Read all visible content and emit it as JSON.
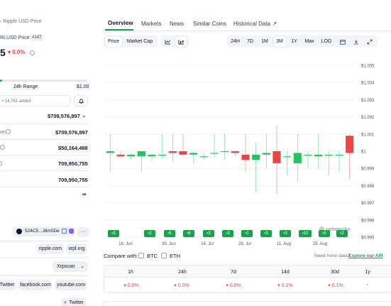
{
  "breadcrumb": {
    "current": "Ripple USD Price"
  },
  "pair": {
    "label": "RLUSD Price",
    "rank": "#147"
  },
  "price": {
    "value": "5",
    "change": "0.0%"
  },
  "range": {
    "label": "24h Range",
    "high": "$1.00"
  },
  "watchlist": {
    "added": "14,761 added"
  },
  "stats": [
    {
      "value": "$709,576,897"
    },
    {
      "label": "on",
      "value": "$709,576,897"
    },
    {
      "value": "$50,164,488"
    },
    {
      "value": "709,950,755"
    },
    {
      "value": "709,950,755"
    },
    {
      "value": "∞"
    }
  ],
  "contract": {
    "address": "524C5...J8m5De",
    "menu": "···"
  },
  "links": {
    "website": "ripple.com",
    "xrpl": "xrpl.org",
    "explorer": "Xrpscan",
    "twitter": "Twitter",
    "facebook": "facebook.com",
    "youtube": "youtube.com",
    "search": "Twitter"
  },
  "tabs": [
    "Overview",
    "Markets",
    "News",
    "Similar Coins",
    "Historical Data"
  ],
  "toolbar": {
    "price": "Price",
    "market_cap": "Market Cap",
    "ranges": [
      "24H",
      "7D",
      "1M",
      "3M",
      "1Y",
      "Max",
      "LOG"
    ],
    "active_range": "3M"
  },
  "compare": {
    "label": "Compare with:",
    "btc": "BTC",
    "eth": "ETH",
    "need_more": "Need more data?",
    "explore": "Explore our API"
  },
  "watermark": "coingecko",
  "performance": {
    "headers": [
      "1h",
      "24h",
      "7d",
      "14d",
      "30d",
      "1y"
    ],
    "values": [
      "0.0%",
      "0.0%",
      "0.0%",
      "0.1%",
      "0.1%",
      "-"
    ]
  },
  "chips": [
    "3",
    "2",
    "5",
    "6",
    "3",
    "3",
    "1",
    "3",
    "3",
    "10",
    "5",
    "2"
  ],
  "colors": {
    "up": "#22c55e",
    "down": "#ef4444",
    "accent": "#16a34a"
  },
  "chart_data": {
    "type": "candlestick",
    "x_ticks": [
      "16. Jun",
      "30. Jun",
      "14. Jul",
      "28. Jul",
      "11. Aug",
      "25. Aug"
    ],
    "y_ticks": [
      "$1.005",
      "$1.004",
      "$1.003",
      "$1.002",
      "$1.001",
      "$1",
      "$0.999",
      "$0.998",
      "$0.997",
      "$0.996",
      "$0.995"
    ],
    "ylim": [
      0.995,
      1.005
    ],
    "candles": [
      {
        "o": 0.9999,
        "c": 1.0,
        "h": 1.001,
        "l": 0.9988
      },
      {
        "o": 0.9998,
        "c": 0.9997,
        "h": 1.0,
        "l": 0.9996
      },
      {
        "o": 0.9997,
        "c": 0.9998,
        "h": 0.9999,
        "l": 0.9995
      },
      {
        "o": 0.9997,
        "c": 1.0,
        "h": 1.0,
        "l": 0.9988
      },
      {
        "o": 0.9997,
        "c": 0.9998,
        "h": 0.9999,
        "l": 0.9994
      },
      {
        "o": 0.9998,
        "c": 0.9998,
        "h": 1.001,
        "l": 0.9996
      },
      {
        "o": 1.0,
        "c": 0.9999,
        "h": 1.001,
        "l": 0.9994
      },
      {
        "o": 1.0,
        "c": 0.9998,
        "h": 1.001,
        "l": 0.9997
      },
      {
        "o": 0.9998,
        "c": 0.9999,
        "h": 1.0,
        "l": 0.9993
      },
      {
        "o": 0.9997,
        "c": 0.9997,
        "h": 0.9999,
        "l": 0.9995
      },
      {
        "o": 0.9999,
        "c": 0.9999,
        "h": 1.001,
        "l": 0.9996
      },
      {
        "o": 1.0,
        "c": 1.0,
        "h": 1.001,
        "l": 0.9995
      },
      {
        "o": 1.0,
        "c": 0.9999,
        "h": 1.0,
        "l": 0.9997
      },
      {
        "o": 0.9998,
        "c": 0.9995,
        "h": 1.001,
        "l": 0.9988
      },
      {
        "o": 0.9995,
        "c": 0.9998,
        "h": 1.0005,
        "l": 0.9976
      },
      {
        "o": 0.9998,
        "c": 0.9999,
        "h": 1.001,
        "l": 0.999
      },
      {
        "o": 1.0,
        "c": 0.9993,
        "h": 1.0015,
        "l": 0.9975
      },
      {
        "o": 0.9997,
        "c": 0.9997,
        "h": 1.0,
        "l": 0.9986
      },
      {
        "o": 0.9993,
        "c": 0.9999,
        "h": 1.001,
        "l": 0.9982
      },
      {
        "o": 0.9998,
        "c": 0.9998,
        "h": 1.0,
        "l": 0.999
      },
      {
        "o": 0.9997,
        "c": 0.9998,
        "h": 1.001,
        "l": 0.999
      },
      {
        "o": 0.9998,
        "c": 0.9998,
        "h": 1.0,
        "l": 0.9986
      },
      {
        "o": 0.9998,
        "c": 0.9998,
        "h": 1.0,
        "l": 0.9988
      },
      {
        "o": 1.0009,
        "c": 0.9999,
        "h": 1.001,
        "l": 0.9984
      }
    ]
  }
}
